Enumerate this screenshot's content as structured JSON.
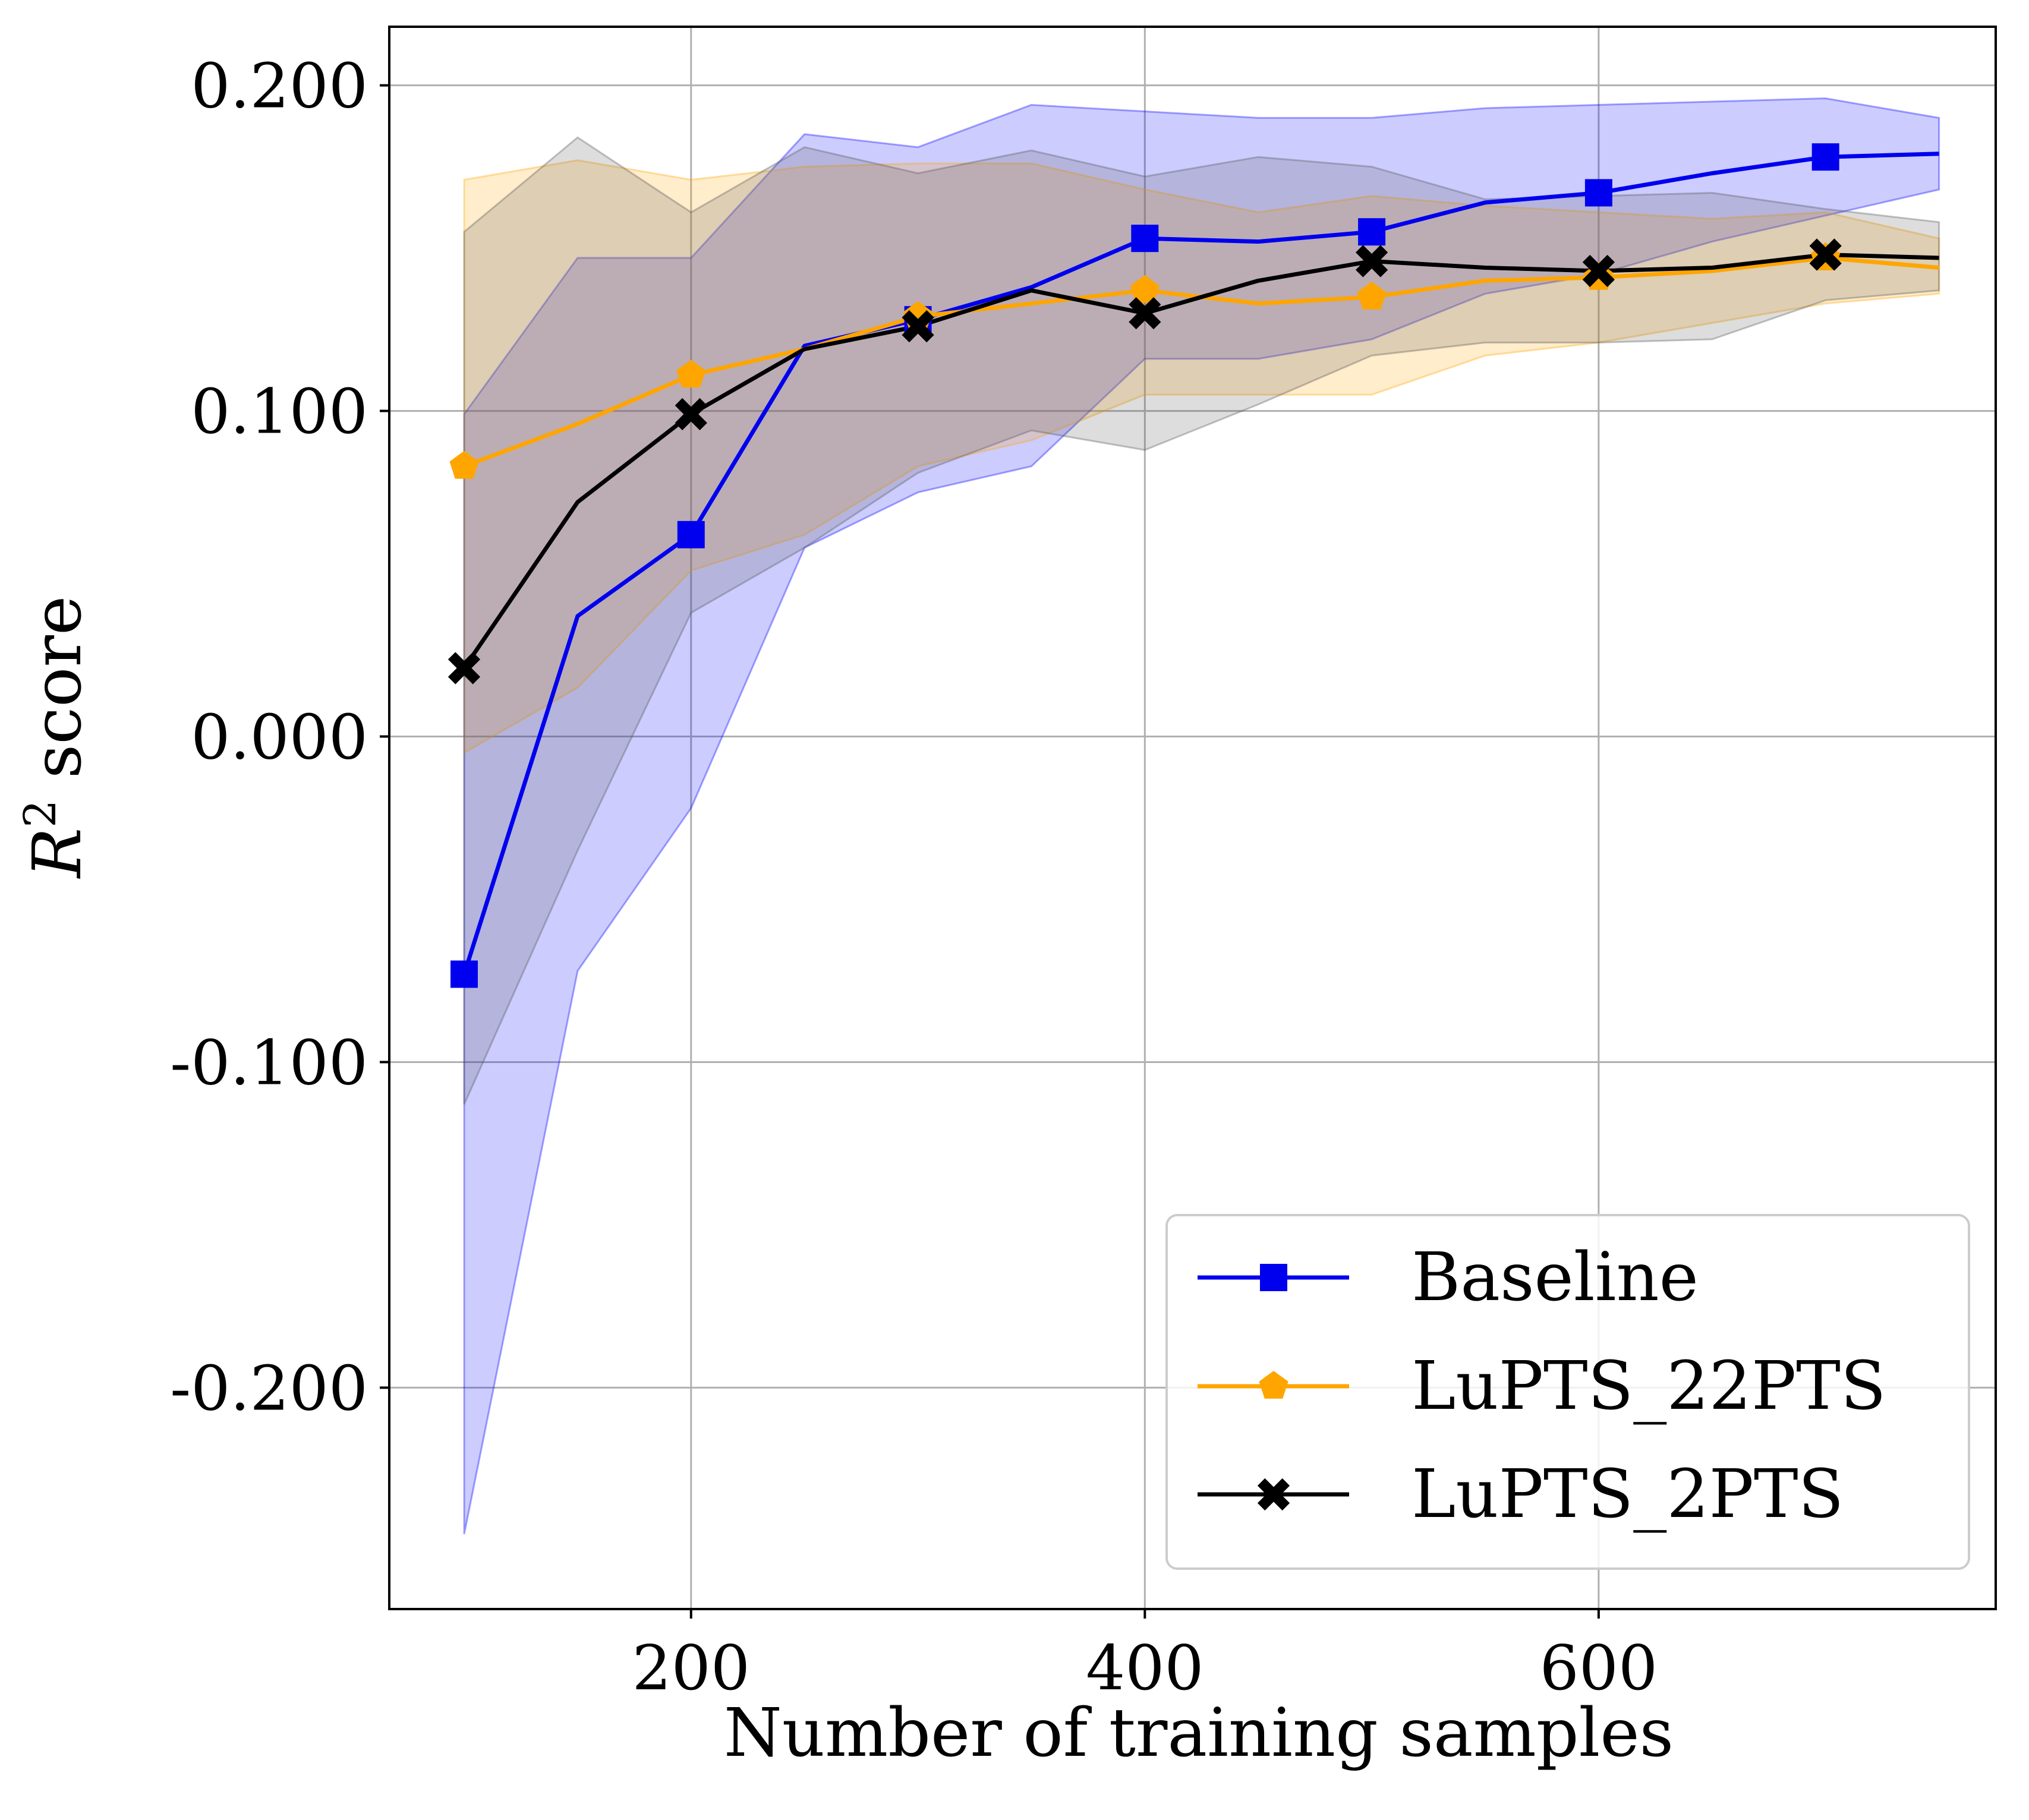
{
  "chart_data": {
    "type": "line",
    "title": "",
    "xlabel": "Number of training samples",
    "ylabel_base": "R",
    "ylabel_sup": "2",
    "ylabel_rest": " score",
    "xlim": [
      67,
      775
    ],
    "ylim": [
      -0.268,
      0.218
    ],
    "xticks": [
      200,
      400,
      600
    ],
    "xtick_labels": [
      "200",
      "400",
      "600"
    ],
    "yticks": [
      0.2,
      0.1,
      0.0,
      -0.1,
      -0.2
    ],
    "ytick_labels": [
      "0.200",
      "0.100",
      "0.000",
      "-0.100",
      "-0.200"
    ],
    "grid": true,
    "legend_position": "lower-right",
    "x": [
      100,
      150,
      200,
      250,
      300,
      350,
      400,
      450,
      500,
      550,
      600,
      650,
      700,
      750
    ],
    "series": [
      {
        "name": "Baseline",
        "color": "#0000ee",
        "band_color": "#0000ff",
        "marker": "square",
        "marker_every": 2,
        "values": [
          -0.073,
          0.037,
          0.062,
          0.12,
          0.128,
          0.138,
          0.153,
          0.152,
          0.155,
          0.164,
          0.167,
          0.173,
          0.178,
          0.179
        ],
        "lower": [
          -0.245,
          -0.072,
          -0.022,
          0.058,
          0.075,
          0.083,
          0.116,
          0.116,
          0.122,
          0.136,
          0.142,
          0.152,
          0.16,
          0.168
        ],
        "upper": [
          0.099,
          0.147,
          0.147,
          0.185,
          0.181,
          0.194,
          0.192,
          0.19,
          0.19,
          0.193,
          0.194,
          0.195,
          0.196,
          0.19
        ]
      },
      {
        "name": "LuPTS_22PTS",
        "color": "#ffa500",
        "band_color": "#ffa500",
        "marker": "pentagon",
        "marker_every": 2,
        "values": [
          0.083,
          0.096,
          0.111,
          0.119,
          0.129,
          0.133,
          0.137,
          0.133,
          0.135,
          0.14,
          0.141,
          0.143,
          0.147,
          0.144
        ],
        "lower": [
          -0.005,
          0.015,
          0.051,
          0.062,
          0.083,
          0.091,
          0.105,
          0.105,
          0.105,
          0.117,
          0.121,
          0.127,
          0.133,
          0.136
        ],
        "upper": [
          0.171,
          0.177,
          0.171,
          0.175,
          0.176,
          0.176,
          0.168,
          0.161,
          0.166,
          0.163,
          0.161,
          0.159,
          0.161,
          0.153
        ]
      },
      {
        "name": "LuPTS_2PTS",
        "color": "#000000",
        "band_color": "#555555",
        "marker": "x",
        "marker_every": 2,
        "values": [
          0.021,
          0.072,
          0.099,
          0.119,
          0.126,
          0.137,
          0.13,
          0.14,
          0.146,
          0.144,
          0.143,
          0.144,
          0.148,
          0.147
        ],
        "lower": [
          -0.113,
          -0.035,
          0.038,
          0.058,
          0.081,
          0.094,
          0.088,
          0.102,
          0.117,
          0.121,
          0.121,
          0.122,
          0.134,
          0.137
        ],
        "upper": [
          0.155,
          0.184,
          0.161,
          0.181,
          0.173,
          0.18,
          0.172,
          0.178,
          0.175,
          0.165,
          0.166,
          0.167,
          0.162,
          0.158
        ]
      }
    ]
  }
}
